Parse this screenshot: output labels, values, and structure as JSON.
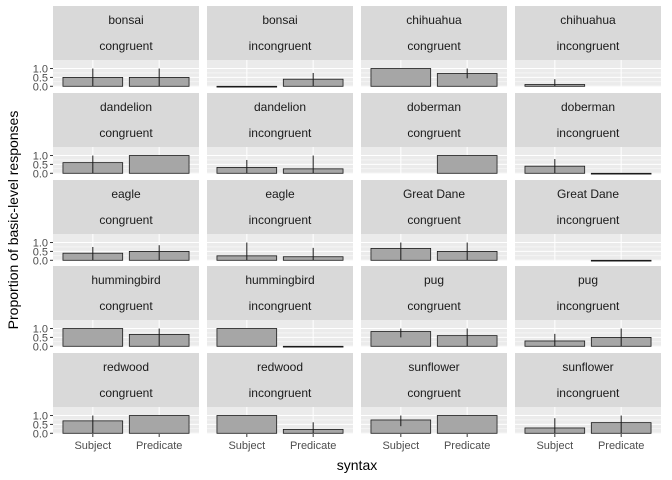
{
  "chart_data": {
    "type": "bar",
    "xlabel": "syntax",
    "ylabel": "Proportion of basic-level responses",
    "categories": [
      "Subject",
      "Predicate"
    ],
    "y_ticks": [
      "0.0",
      "0.5",
      "1.0"
    ],
    "ylim": [
      -0.04,
      1.48
    ],
    "grid": true,
    "facet_layout": "5 rows x 4 columns, two-line strip labels (stimulus, condition)",
    "colors": {
      "panel_bg": "#ebebeb",
      "strip_bg": "#d9d9d9",
      "bar_fill": "#a6a6a6",
      "bar_stroke": "#1a1a1a",
      "gridline": "#ffffff"
    },
    "panels": [
      {
        "stimulus": "bonsai",
        "condition": "congruent",
        "values": [
          0.5,
          0.5
        ],
        "errors": [
          [
            0.0,
            1.0
          ],
          [
            0.0,
            1.0
          ]
        ]
      },
      {
        "stimulus": "bonsai",
        "condition": "incongruent",
        "values": [
          0.0,
          0.4
        ],
        "errors": [
          [
            0.0,
            0.0
          ],
          [
            0.0,
            0.75
          ]
        ]
      },
      {
        "stimulus": "chihuahua",
        "condition": "congruent",
        "values": [
          1.0,
          0.72
        ],
        "errors": [
          [
            1.0,
            1.0
          ],
          [
            0.45,
            1.0
          ]
        ]
      },
      {
        "stimulus": "chihuahua",
        "condition": "incongruent",
        "values": [
          0.1,
          null
        ],
        "errors": [
          [
            0.0,
            0.4
          ],
          null
        ]
      },
      {
        "stimulus": "dandelion",
        "condition": "congruent",
        "values": [
          0.6,
          1.0
        ],
        "errors": [
          [
            0.0,
            1.0
          ],
          [
            1.0,
            1.0
          ]
        ]
      },
      {
        "stimulus": "dandelion",
        "condition": "incongruent",
        "values": [
          0.33,
          0.25
        ],
        "errors": [
          [
            0.0,
            0.75
          ],
          [
            0.0,
            1.0
          ]
        ]
      },
      {
        "stimulus": "doberman",
        "condition": "congruent",
        "values": [
          null,
          1.0
        ],
        "errors": [
          null,
          [
            1.0,
            1.0
          ]
        ]
      },
      {
        "stimulus": "doberman",
        "condition": "incongruent",
        "values": [
          0.4,
          0.0
        ],
        "errors": [
          [
            0.0,
            0.8
          ],
          [
            0.0,
            0.0
          ]
        ]
      },
      {
        "stimulus": "eagle",
        "condition": "congruent",
        "values": [
          0.4,
          0.5
        ],
        "errors": [
          [
            0.0,
            0.75
          ],
          [
            0.0,
            0.85
          ]
        ]
      },
      {
        "stimulus": "eagle",
        "condition": "incongruent",
        "values": [
          0.25,
          0.2
        ],
        "errors": [
          [
            0.0,
            1.0
          ],
          [
            0.0,
            0.7
          ]
        ]
      },
      {
        "stimulus": "Great Dane",
        "condition": "congruent",
        "values": [
          0.67,
          0.5
        ],
        "errors": [
          [
            0.0,
            1.0
          ],
          [
            0.0,
            1.0
          ]
        ]
      },
      {
        "stimulus": "Great Dane",
        "condition": "incongruent",
        "values": [
          null,
          0.0
        ],
        "errors": [
          null,
          [
            0.0,
            0.0
          ]
        ]
      },
      {
        "stimulus": "hummingbird",
        "condition": "congruent",
        "values": [
          1.0,
          0.67
        ],
        "errors": [
          [
            1.0,
            1.0
          ],
          [
            0.0,
            1.0
          ]
        ]
      },
      {
        "stimulus": "hummingbird",
        "condition": "incongruent",
        "values": [
          1.0,
          0.0
        ],
        "errors": [
          [
            1.0,
            1.0
          ],
          [
            0.0,
            0.0
          ]
        ]
      },
      {
        "stimulus": "pug",
        "condition": "congruent",
        "values": [
          0.83,
          0.6
        ],
        "errors": [
          [
            0.5,
            1.0
          ],
          [
            0.0,
            1.0
          ]
        ]
      },
      {
        "stimulus": "pug",
        "condition": "incongruent",
        "values": [
          0.3,
          0.5
        ],
        "errors": [
          [
            0.0,
            0.7
          ],
          [
            0.0,
            1.0
          ]
        ]
      },
      {
        "stimulus": "redwood",
        "condition": "congruent",
        "values": [
          0.7,
          1.0
        ],
        "errors": [
          [
            0.0,
            1.0
          ],
          [
            1.0,
            1.0
          ]
        ]
      },
      {
        "stimulus": "redwood",
        "condition": "incongruent",
        "values": [
          1.0,
          0.22
        ],
        "errors": [
          [
            1.0,
            1.0
          ],
          [
            0.0,
            0.62
          ]
        ]
      },
      {
        "stimulus": "sunflower",
        "condition": "congruent",
        "values": [
          0.75,
          1.0
        ],
        "errors": [
          [
            0.4,
            1.0
          ],
          [
            1.0,
            1.0
          ]
        ]
      },
      {
        "stimulus": "sunflower",
        "condition": "incongruent",
        "values": [
          0.3,
          0.6
        ],
        "errors": [
          [
            0.0,
            0.85
          ],
          [
            0.0,
            1.0
          ]
        ]
      }
    ]
  }
}
